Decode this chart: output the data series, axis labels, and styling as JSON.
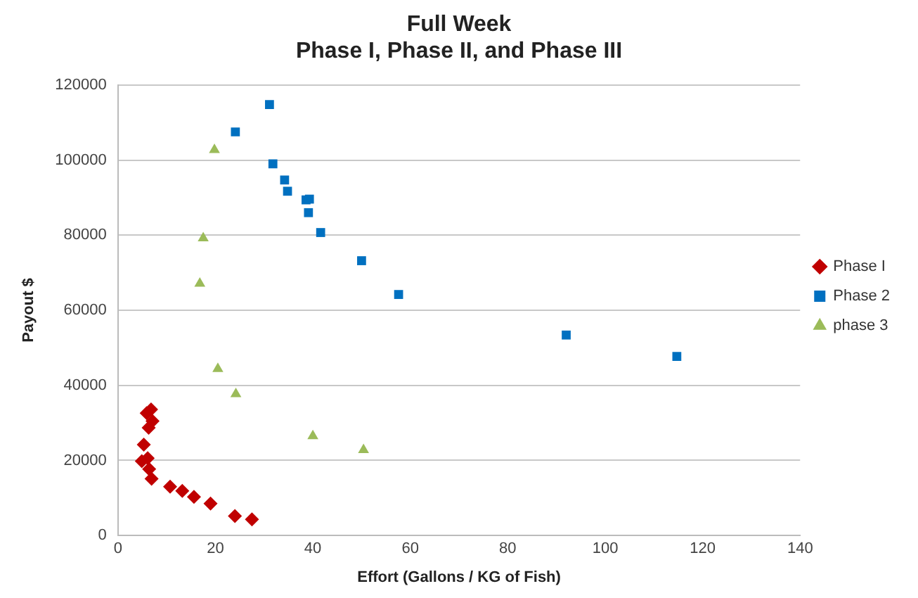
{
  "chart_data": {
    "type": "scatter",
    "title": "Full Week\nPhase I, Phase II, and Phase III",
    "xlabel": "Effort (Gallons / KG of Fish)",
    "ylabel": "Payout $",
    "xlim": [
      0,
      140
    ],
    "xticks": [
      0,
      20,
      40,
      60,
      80,
      100,
      120,
      140
    ],
    "ylim": [
      0,
      120000
    ],
    "yticks": [
      0,
      20000,
      40000,
      60000,
      80000,
      100000,
      120000
    ],
    "grid": "y",
    "legend": "right",
    "series": [
      {
        "name": "Phase I",
        "color": "#c00000",
        "marker": "diamond",
        "x": [
          6.8,
          5.9,
          7.1,
          6.3,
          5.3,
          4.9,
          6.1,
          6.4,
          6.9,
          10.7,
          13.2,
          15.6,
          19.0,
          24.0,
          27.5
        ],
        "values": [
          33600,
          32600,
          30500,
          28700,
          24200,
          19800,
          20600,
          17700,
          15100,
          13000,
          11900,
          10300,
          8500,
          5200,
          4300
        ]
      },
      {
        "name": "Phase 2",
        "color": "#0070c0",
        "marker": "square",
        "x": [
          31.1,
          24.1,
          31.8,
          34.2,
          34.8,
          38.6,
          39.3,
          39.1,
          41.6,
          50.0,
          57.6,
          92.0,
          114.7
        ],
        "values": [
          114800,
          107500,
          99000,
          94700,
          91700,
          89400,
          89600,
          86000,
          80700,
          73200,
          64200,
          53400,
          47700
        ]
      },
      {
        "name": "phase 3",
        "color": "#9bbb59",
        "marker": "triangle",
        "x": [
          19.8,
          17.5,
          16.8,
          20.5,
          24.2,
          40.0,
          50.4
        ],
        "values": [
          102700,
          79200,
          67100,
          44400,
          37700,
          26500,
          22800
        ]
      }
    ]
  }
}
